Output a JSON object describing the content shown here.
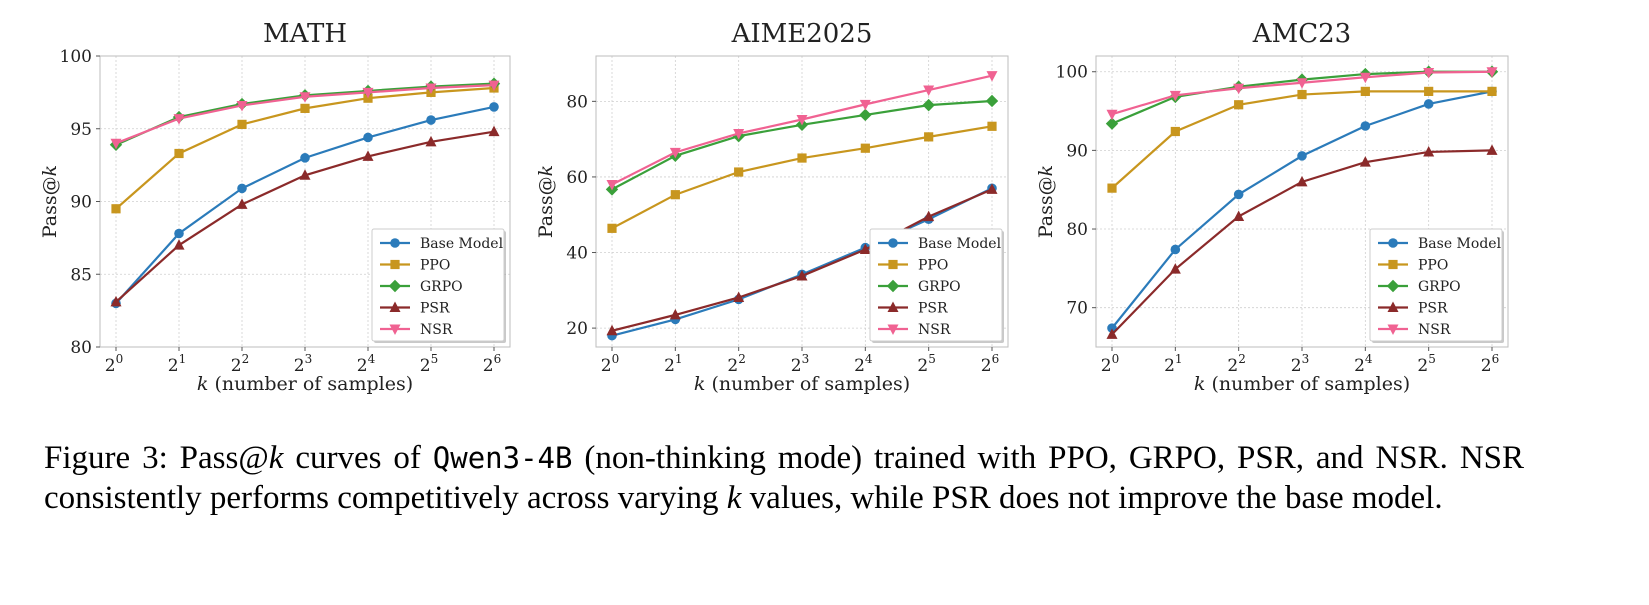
{
  "chart_data": [
    {
      "type": "line",
      "title": "MATH",
      "xlabel": "(number of samples)",
      "xlabel_var": "k",
      "ylabel": "Pass@",
      "ylabel_var": "k",
      "x_exponents": [
        0,
        1,
        2,
        3,
        4,
        5,
        6
      ],
      "x_tick_base": "2",
      "ylim": [
        80,
        100
      ],
      "yticks": [
        80,
        85,
        90,
        95,
        100
      ],
      "grid": true,
      "legend": "bottom-right",
      "series": [
        {
          "name": "Base Model",
          "color": "#2b7bba",
          "marker": "circle",
          "values": [
            83.0,
            87.8,
            90.9,
            93.0,
            94.4,
            95.6,
            96.5
          ]
        },
        {
          "name": "PPO",
          "color": "#c8961e",
          "marker": "square",
          "values": [
            89.5,
            93.3,
            95.3,
            96.4,
            97.1,
            97.5,
            97.8
          ]
        },
        {
          "name": "GRPO",
          "color": "#3aa03a",
          "marker": "diamond",
          "values": [
            93.9,
            95.8,
            96.7,
            97.3,
            97.6,
            97.9,
            98.1
          ]
        },
        {
          "name": "PSR",
          "color": "#8b2a2a",
          "marker": "triangle-up",
          "values": [
            83.1,
            87.0,
            89.8,
            91.8,
            93.1,
            94.1,
            94.8
          ]
        },
        {
          "name": "NSR",
          "color": "#f06292",
          "marker": "triangle-down",
          "values": [
            94.0,
            95.7,
            96.6,
            97.2,
            97.5,
            97.8,
            98.0
          ]
        }
      ]
    },
    {
      "type": "line",
      "title": "AIME2025",
      "xlabel": "(number of samples)",
      "xlabel_var": "k",
      "ylabel": "Pass@",
      "ylabel_var": "k",
      "x_exponents": [
        0,
        1,
        2,
        3,
        4,
        5,
        6
      ],
      "x_tick_base": "2",
      "ylim": [
        15,
        92
      ],
      "yticks": [
        20,
        40,
        60,
        80
      ],
      "grid": true,
      "legend": "bottom-right",
      "series": [
        {
          "name": "Base Model",
          "color": "#2b7bba",
          "marker": "circle",
          "values": [
            18.0,
            22.3,
            27.6,
            34.2,
            41.3,
            48.8,
            57.0
          ]
        },
        {
          "name": "PPO",
          "color": "#c8961e",
          "marker": "square",
          "values": [
            46.4,
            55.3,
            61.3,
            65.0,
            67.6,
            70.6,
            73.4
          ]
        },
        {
          "name": "GRPO",
          "color": "#3aa03a",
          "marker": "diamond",
          "values": [
            56.7,
            65.6,
            70.8,
            73.8,
            76.4,
            79.0,
            80.1
          ]
        },
        {
          "name": "PSR",
          "color": "#8b2a2a",
          "marker": "triangle-up",
          "values": [
            19.3,
            23.5,
            28.1,
            33.8,
            40.8,
            49.5,
            56.7
          ]
        },
        {
          "name": "NSR",
          "color": "#f06292",
          "marker": "triangle-down",
          "values": [
            58.0,
            66.5,
            71.5,
            75.2,
            79.2,
            83.0,
            86.8
          ]
        }
      ]
    },
    {
      "type": "line",
      "title": "AMC23",
      "xlabel": "(number of samples)",
      "xlabel_var": "k",
      "ylabel": "Pass@",
      "ylabel_var": "k",
      "x_exponents": [
        0,
        1,
        2,
        3,
        4,
        5,
        6
      ],
      "x_tick_base": "2",
      "ylim": [
        65,
        102
      ],
      "yticks": [
        70,
        80,
        90,
        100
      ],
      "grid": true,
      "legend": "bottom-right",
      "series": [
        {
          "name": "Base Model",
          "color": "#2b7bba",
          "marker": "circle",
          "values": [
            67.4,
            77.4,
            84.4,
            89.3,
            93.1,
            95.9,
            97.5
          ]
        },
        {
          "name": "PPO",
          "color": "#c8961e",
          "marker": "square",
          "values": [
            85.2,
            92.4,
            95.8,
            97.1,
            97.5,
            97.5,
            97.5
          ]
        },
        {
          "name": "GRPO",
          "color": "#3aa03a",
          "marker": "diamond",
          "values": [
            93.4,
            96.8,
            98.1,
            99.0,
            99.7,
            100.0,
            100.0
          ]
        },
        {
          "name": "PSR",
          "color": "#8b2a2a",
          "marker": "triangle-up",
          "values": [
            66.6,
            74.9,
            81.6,
            86.0,
            88.5,
            89.8,
            90.0
          ]
        },
        {
          "name": "NSR",
          "color": "#f06292",
          "marker": "triangle-down",
          "values": [
            94.6,
            97.0,
            97.9,
            98.6,
            99.3,
            99.9,
            100.0
          ]
        }
      ]
    }
  ],
  "caption": {
    "label": "Figure 3:",
    "text_1": "Pass@",
    "var_k": "k",
    "text_2": "curves of",
    "model": "Qwen3-4B",
    "text_3": "(non-thinking mode) trained with PPO, GRPO, PSR, and NSR. NSR consistently performs competitively across varying",
    "text_4": "values, while PSR does not improve the base model."
  }
}
